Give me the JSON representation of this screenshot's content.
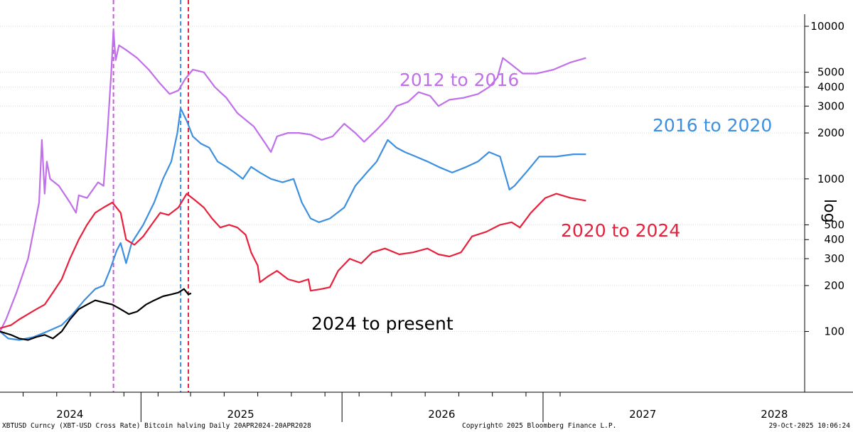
{
  "chart_data": {
    "type": "line",
    "y_scale": "log",
    "ylabel": "log",
    "ylim": [
      40,
      12000
    ],
    "y_ticks": [
      100,
      200,
      300,
      400,
      500,
      1000,
      2000,
      3000,
      4000,
      5000,
      10000
    ],
    "x_axis_labels": [
      "2024",
      "2025",
      "2026",
      "2027",
      "2028"
    ],
    "grid": "horizontal",
    "vertical_markers": [
      {
        "date": "2024-11-12",
        "color": "#c85ad8",
        "style": "dashed"
      },
      {
        "date": "2025-03-14",
        "color": "#3d8fe0",
        "style": "dashed"
      },
      {
        "date": "2025-03-28",
        "color": "#e8203c",
        "style": "dashed"
      }
    ],
    "series": [
      {
        "name": "2012 to 2016",
        "color": "#c070e8",
        "points": [
          [
            "2024-04-20",
            100
          ],
          [
            "2024-05-01",
            120
          ],
          [
            "2024-05-20",
            180
          ],
          [
            "2024-06-10",
            300
          ],
          [
            "2024-06-30",
            700
          ],
          [
            "2024-07-05",
            1800
          ],
          [
            "2024-07-10",
            800
          ],
          [
            "2024-07-14",
            1300
          ],
          [
            "2024-07-20",
            1000
          ],
          [
            "2024-08-05",
            900
          ],
          [
            "2024-08-25",
            700
          ],
          [
            "2024-09-05",
            600
          ],
          [
            "2024-09-10",
            780
          ],
          [
            "2024-09-25",
            750
          ],
          [
            "2024-10-15",
            950
          ],
          [
            "2024-10-25",
            900
          ],
          [
            "2024-11-01",
            2000
          ],
          [
            "2024-11-08",
            5000
          ],
          [
            "2024-11-12",
            9500
          ],
          [
            "2024-11-16",
            6000
          ],
          [
            "2024-11-22",
            7500
          ],
          [
            "2024-12-05",
            7000
          ],
          [
            "2024-12-25",
            6200
          ],
          [
            "2025-01-15",
            5200
          ],
          [
            "2025-02-05",
            4200
          ],
          [
            "2025-02-22",
            3600
          ],
          [
            "2025-03-10",
            3800
          ],
          [
            "2025-03-22",
            4500
          ],
          [
            "2025-04-05",
            5200
          ],
          [
            "2025-04-25",
            5000
          ],
          [
            "2025-05-15",
            4000
          ],
          [
            "2025-06-05",
            3400
          ],
          [
            "2025-06-25",
            2700
          ],
          [
            "2025-07-25",
            2200
          ],
          [
            "2025-08-15",
            1700
          ],
          [
            "2025-08-25",
            1500
          ],
          [
            "2025-09-05",
            1900
          ],
          [
            "2025-09-25",
            2000
          ],
          [
            "2025-10-15",
            2000
          ],
          [
            "2025-11-05",
            1950
          ],
          [
            "2025-11-25",
            1800
          ],
          [
            "2025-12-15",
            1900
          ],
          [
            "2026-01-05",
            2300
          ],
          [
            "2026-01-25",
            2000
          ],
          [
            "2026-02-10",
            1750
          ],
          [
            "2026-03-05",
            2100
          ],
          [
            "2026-03-25",
            2500
          ],
          [
            "2026-04-10",
            3000
          ],
          [
            "2026-05-01",
            3200
          ],
          [
            "2026-05-20",
            3700
          ],
          [
            "2026-06-10",
            3500
          ],
          [
            "2026-06-25",
            3000
          ],
          [
            "2026-07-15",
            3300
          ],
          [
            "2026-08-10",
            3400
          ],
          [
            "2026-09-05",
            3600
          ],
          [
            "2026-09-25",
            4000
          ],
          [
            "2026-10-10",
            4600
          ],
          [
            "2026-10-20",
            6200
          ],
          [
            "2026-11-05",
            5600
          ],
          [
            "2026-11-25",
            4900
          ],
          [
            "2026-12-20",
            4900
          ],
          [
            "2027-01-20",
            5200
          ],
          [
            "2027-02-20",
            5800
          ],
          [
            "2027-03-20",
            6200
          ]
        ]
      },
      {
        "name": "2016 to 2020",
        "color": "#3d8fe0",
        "points": [
          [
            "2024-04-20",
            100
          ],
          [
            "2024-05-05",
            90
          ],
          [
            "2024-05-25",
            88
          ],
          [
            "2024-06-20",
            92
          ],
          [
            "2024-07-15",
            100
          ],
          [
            "2024-08-10",
            110
          ],
          [
            "2024-08-30",
            130
          ],
          [
            "2024-09-20",
            160
          ],
          [
            "2024-10-10",
            190
          ],
          [
            "2024-10-25",
            200
          ],
          [
            "2024-11-05",
            250
          ],
          [
            "2024-11-18",
            340
          ],
          [
            "2024-11-25",
            380
          ],
          [
            "2024-12-05",
            280
          ],
          [
            "2024-12-15",
            380
          ],
          [
            "2025-01-05",
            500
          ],
          [
            "2025-01-25",
            700
          ],
          [
            "2025-02-10",
            1000
          ],
          [
            "2025-02-25",
            1300
          ],
          [
            "2025-03-08",
            2000
          ],
          [
            "2025-03-14",
            2900
          ],
          [
            "2025-03-25",
            2400
          ],
          [
            "2025-04-05",
            1900
          ],
          [
            "2025-04-20",
            1700
          ],
          [
            "2025-05-05",
            1600
          ],
          [
            "2025-05-20",
            1300
          ],
          [
            "2025-06-05",
            1200
          ],
          [
            "2025-06-20",
            1100
          ],
          [
            "2025-07-05",
            1000
          ],
          [
            "2025-07-20",
            1200
          ],
          [
            "2025-08-05",
            1100
          ],
          [
            "2025-08-25",
            1000
          ],
          [
            "2025-09-15",
            950
          ],
          [
            "2025-10-05",
            1000
          ],
          [
            "2025-10-20",
            700
          ],
          [
            "2025-11-05",
            550
          ],
          [
            "2025-11-20",
            520
          ],
          [
            "2025-12-10",
            550
          ],
          [
            "2026-01-05",
            650
          ],
          [
            "2026-01-25",
            900
          ],
          [
            "2026-02-15",
            1100
          ],
          [
            "2026-03-05",
            1300
          ],
          [
            "2026-03-25",
            1800
          ],
          [
            "2026-04-10",
            1600
          ],
          [
            "2026-04-25",
            1500
          ],
          [
            "2026-05-15",
            1400
          ],
          [
            "2026-06-05",
            1300
          ],
          [
            "2026-06-25",
            1200
          ],
          [
            "2026-07-20",
            1100
          ],
          [
            "2026-08-15",
            1200
          ],
          [
            "2026-09-05",
            1300
          ],
          [
            "2026-09-25",
            1500
          ],
          [
            "2026-10-15",
            1400
          ],
          [
            "2026-11-01",
            850
          ],
          [
            "2026-11-10",
            900
          ],
          [
            "2026-12-01",
            1100
          ],
          [
            "2026-12-25",
            1400
          ],
          [
            "2027-01-25",
            1400
          ],
          [
            "2027-02-25",
            1450
          ],
          [
            "2027-03-20",
            1450
          ]
        ]
      },
      {
        "name": "2020 to 2024",
        "color": "#e8203c",
        "points": [
          [
            "2024-04-20",
            105
          ],
          [
            "2024-05-10",
            110
          ],
          [
            "2024-05-25",
            120
          ],
          [
            "2024-06-10",
            130
          ],
          [
            "2024-06-25",
            140
          ],
          [
            "2024-07-10",
            150
          ],
          [
            "2024-07-25",
            180
          ],
          [
            "2024-08-10",
            220
          ],
          [
            "2024-08-25",
            300
          ],
          [
            "2024-09-10",
            400
          ],
          [
            "2024-09-25",
            500
          ],
          [
            "2024-10-10",
            600
          ],
          [
            "2024-10-25",
            650
          ],
          [
            "2024-11-10",
            700
          ],
          [
            "2024-11-25",
            600
          ],
          [
            "2024-12-05",
            400
          ],
          [
            "2024-12-20",
            370
          ],
          [
            "2025-01-05",
            420
          ],
          [
            "2025-01-20",
            500
          ],
          [
            "2025-02-05",
            600
          ],
          [
            "2025-02-20",
            580
          ],
          [
            "2025-03-10",
            650
          ],
          [
            "2025-03-25",
            800
          ],
          [
            "2025-04-10",
            720
          ],
          [
            "2025-04-25",
            650
          ],
          [
            "2025-05-10",
            550
          ],
          [
            "2025-05-25",
            480
          ],
          [
            "2025-06-10",
            500
          ],
          [
            "2025-06-25",
            480
          ],
          [
            "2025-07-10",
            430
          ],
          [
            "2025-07-20",
            330
          ],
          [
            "2025-08-01",
            270
          ],
          [
            "2025-08-05",
            210
          ],
          [
            "2025-08-20",
            230
          ],
          [
            "2025-09-05",
            250
          ],
          [
            "2025-09-25",
            220
          ],
          [
            "2025-10-15",
            210
          ],
          [
            "2025-11-01",
            220
          ],
          [
            "2025-11-05",
            185
          ],
          [
            "2025-11-25",
            190
          ],
          [
            "2025-12-10",
            195
          ],
          [
            "2025-12-25",
            250
          ],
          [
            "2026-01-15",
            300
          ],
          [
            "2026-02-05",
            280
          ],
          [
            "2026-02-25",
            330
          ],
          [
            "2026-03-20",
            350
          ],
          [
            "2026-04-15",
            320
          ],
          [
            "2026-05-10",
            330
          ],
          [
            "2026-06-05",
            350
          ],
          [
            "2026-06-25",
            320
          ],
          [
            "2026-07-15",
            310
          ],
          [
            "2026-08-05",
            330
          ],
          [
            "2026-08-25",
            420
          ],
          [
            "2026-09-20",
            450
          ],
          [
            "2026-10-15",
            500
          ],
          [
            "2026-11-05",
            520
          ],
          [
            "2026-11-20",
            480
          ],
          [
            "2026-12-10",
            600
          ],
          [
            "2027-01-05",
            750
          ],
          [
            "2027-01-25",
            800
          ],
          [
            "2027-02-20",
            750
          ],
          [
            "2027-03-20",
            720
          ]
        ]
      },
      {
        "name": "2024 to present",
        "color": "#000000",
        "points": [
          [
            "2024-04-20",
            100
          ],
          [
            "2024-05-10",
            95
          ],
          [
            "2024-05-25",
            90
          ],
          [
            "2024-06-10",
            88
          ],
          [
            "2024-06-25",
            92
          ],
          [
            "2024-07-10",
            95
          ],
          [
            "2024-07-25",
            90
          ],
          [
            "2024-08-10",
            100
          ],
          [
            "2024-08-25",
            120
          ],
          [
            "2024-09-10",
            140
          ],
          [
            "2024-09-25",
            150
          ],
          [
            "2024-10-10",
            160
          ],
          [
            "2024-10-25",
            155
          ],
          [
            "2024-11-10",
            150
          ],
          [
            "2024-11-25",
            140
          ],
          [
            "2024-12-10",
            130
          ],
          [
            "2024-12-25",
            135
          ],
          [
            "2025-01-10",
            150
          ],
          [
            "2025-01-25",
            160
          ],
          [
            "2025-02-10",
            170
          ],
          [
            "2025-02-25",
            175
          ],
          [
            "2025-03-10",
            180
          ],
          [
            "2025-03-20",
            190
          ],
          [
            "2025-03-28",
            175
          ],
          [
            "2025-04-02",
            178
          ]
        ]
      }
    ]
  },
  "annotations": [
    "2012 to 2016",
    "2016 to 2020",
    "2020 to 2024",
    "2024 to present"
  ],
  "footer": {
    "left": "XBTUSD Curncy (XBT-USD Cross Rate) Bitcoin halving Daily 20APR2024-20APR2028",
    "center": "Copyright© 2025 Bloomberg Finance L.P.",
    "right": "29-Oct-2025 10:06:24"
  }
}
